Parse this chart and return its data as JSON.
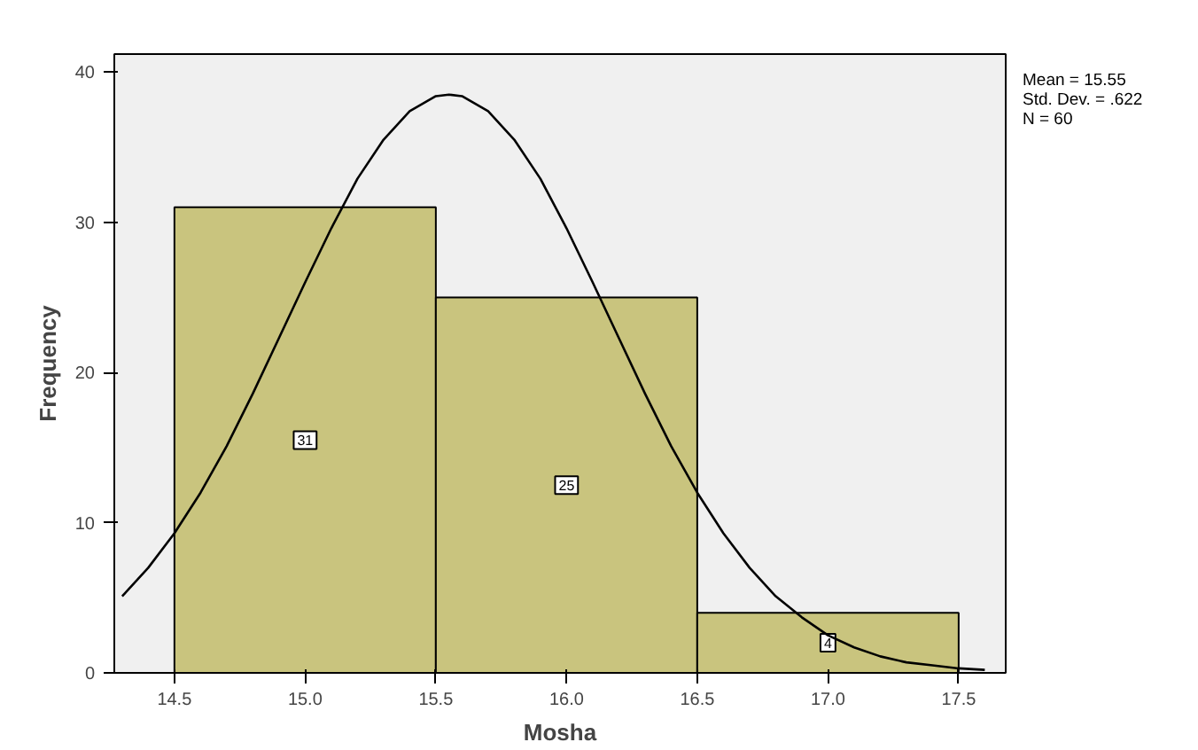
{
  "chart_data": {
    "type": "histogram",
    "xlabel": "Mosha",
    "ylabel": "Frequency",
    "bins": [
      14.5,
      15.5,
      16.5,
      17.5
    ],
    "series": [
      {
        "color": "#c9c47e",
        "values": [
          31,
          25,
          4
        ],
        "value_labels": [
          "31",
          "25",
          "4"
        ]
      },
      {
        "type": "line",
        "color": "#000000",
        "x": [
          14.3,
          14.4,
          14.5,
          14.6,
          14.7,
          14.8,
          14.9,
          15.0,
          15.1,
          15.2,
          15.3,
          15.4,
          15.5,
          15.55,
          15.6,
          15.7,
          15.8,
          15.9,
          16.0,
          16.1,
          16.2,
          16.3,
          16.4,
          16.5,
          16.6,
          16.7,
          16.8,
          16.9,
          17.0,
          17.1,
          17.2,
          17.3,
          17.4,
          17.5,
          17.6
        ],
        "values": [
          5.1,
          7.0,
          9.3,
          12.0,
          15.1,
          18.6,
          22.3,
          26.0,
          29.6,
          32.9,
          35.5,
          37.4,
          38.4,
          38.5,
          38.4,
          37.4,
          35.5,
          32.9,
          29.6,
          26.0,
          22.3,
          18.6,
          15.1,
          12.0,
          9.3,
          7.0,
          5.1,
          3.7,
          2.5,
          1.7,
          1.1,
          0.7,
          0.5,
          0.3,
          0.2
        ]
      }
    ],
    "xlim": [
      14.27,
      17.68
    ],
    "ylim": [
      0,
      41.2
    ],
    "xticks": [
      14.5,
      {
        "value": 15.0,
        "label": "15.0"
      },
      15.5,
      {
        "value": 16.0,
        "label": "16.0"
      },
      16.5,
      {
        "value": 17.0,
        "label": "17.0"
      },
      17.5
    ],
    "yticks": [
      0,
      10,
      20,
      30,
      40
    ],
    "grid": false,
    "annotations": [
      "Mean = 15.55",
      "Std. Dev. = .622",
      "N = 60"
    ]
  }
}
